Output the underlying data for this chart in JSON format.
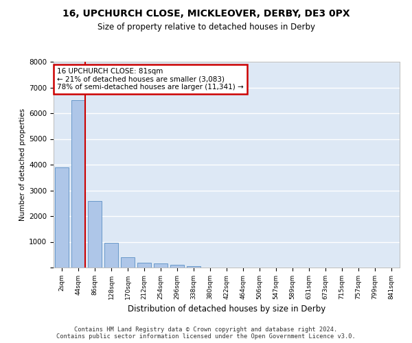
{
  "title1": "16, UPCHURCH CLOSE, MICKLEOVER, DERBY, DE3 0PX",
  "title2": "Size of property relative to detached houses in Derby",
  "xlabel": "Distribution of detached houses by size in Derby",
  "ylabel": "Number of detached properties",
  "bin_labels": [
    "2sqm",
    "44sqm",
    "86sqm",
    "128sqm",
    "170sqm",
    "212sqm",
    "254sqm",
    "296sqm",
    "338sqm",
    "380sqm",
    "422sqm",
    "464sqm",
    "506sqm",
    "547sqm",
    "589sqm",
    "631sqm",
    "673sqm",
    "715sqm",
    "757sqm",
    "799sqm",
    "841sqm"
  ],
  "bar_values": [
    3900,
    6500,
    2600,
    950,
    390,
    195,
    155,
    95,
    50,
    0,
    0,
    0,
    0,
    0,
    0,
    0,
    0,
    0,
    0,
    0,
    0
  ],
  "bar_color": "#aec6e8",
  "bar_edge_color": "#5a8fc4",
  "background_color": "#dde8f5",
  "grid_color": "#ffffff",
  "vline_color": "#cc0000",
  "annotation_text": "16 UPCHURCH CLOSE: 81sqm\n← 21% of detached houses are smaller (3,083)\n78% of semi-detached houses are larger (11,341) →",
  "annotation_box_color": "#ffffff",
  "annotation_box_edge": "#cc0000",
  "footer_text": "Contains HM Land Registry data © Crown copyright and database right 2024.\nContains public sector information licensed under the Open Government Licence v3.0.",
  "ylim": [
    0,
    8000
  ],
  "yticks": [
    0,
    1000,
    2000,
    3000,
    4000,
    5000,
    6000,
    7000,
    8000
  ]
}
